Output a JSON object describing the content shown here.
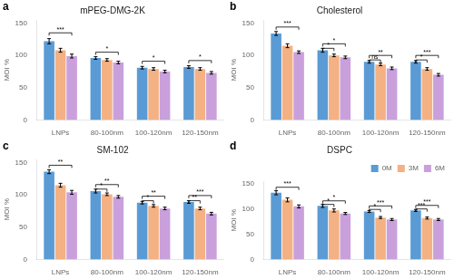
{
  "chart_data": [
    {
      "type": "bar",
      "panel_label": "a",
      "title": "mPEG-DMG-2K",
      "categories": [
        "LNPs",
        "80-100nm",
        "100-120nm",
        "120-150nm"
      ],
      "series": [
        {
          "name": "0M",
          "color": "#5B9BD5",
          "values": [
            122,
            96,
            81,
            82
          ],
          "errors": [
            4,
            2,
            2,
            2
          ]
        },
        {
          "name": "3M",
          "color": "#F4B183",
          "values": [
            108,
            93,
            79,
            79
          ],
          "errors": [
            3,
            2,
            2,
            2
          ]
        },
        {
          "name": "6M",
          "color": "#C9A0DC",
          "values": [
            99,
            89,
            75,
            73
          ],
          "errors": [
            3,
            2,
            2,
            2
          ]
        }
      ],
      "ylabel": "MOI %",
      "ylim": [
        0,
        155
      ],
      "yticks": [
        0,
        50,
        100,
        150
      ],
      "grid": false,
      "annotations": [
        {
          "text": "***",
          "y": 135,
          "from": {
            "category": "LNPs",
            "series": "0M"
          },
          "to": {
            "category": "LNPs",
            "series": "6M"
          }
        },
        {
          "text": "*",
          "y": 105,
          "from": {
            "category": "80-100nm",
            "series": "0M"
          },
          "to": {
            "category": "80-100nm",
            "series": "6M"
          }
        },
        {
          "text": "*",
          "y": 91,
          "from": {
            "category": "100-120nm",
            "series": "0M"
          },
          "to": {
            "category": "100-120nm",
            "series": "6M"
          }
        },
        {
          "text": "*",
          "y": 92,
          "from": {
            "category": "120-150nm",
            "series": "0M"
          },
          "to": {
            "category": "120-150nm",
            "series": "6M"
          }
        }
      ]
    },
    {
      "type": "bar",
      "panel_label": "b",
      "title": "Cholesterol",
      "categories": [
        "LNPs",
        "80-100nm",
        "100-120nm",
        "120-150nm"
      ],
      "series": [
        {
          "name": "0M",
          "color": "#5B9BD5",
          "values": [
            134,
            108,
            90,
            90
          ],
          "errors": [
            3,
            3,
            2,
            2
          ]
        },
        {
          "name": "3M",
          "color": "#F4B183",
          "values": [
            115,
            100,
            86,
            79
          ],
          "errors": [
            3,
            2,
            2,
            2
          ]
        },
        {
          "name": "6M",
          "color": "#C9A0DC",
          "values": [
            105,
            97,
            80,
            70
          ],
          "errors": [
            2,
            2,
            2,
            2
          ]
        }
      ],
      "ylabel": "MOI %",
      "ylim": [
        0,
        155
      ],
      "yticks": [
        0,
        50,
        100,
        150
      ],
      "grid": false,
      "annotations": [
        {
          "text": "***",
          "y": 144,
          "from": {
            "category": "LNPs",
            "series": "0M"
          },
          "to": {
            "category": "LNPs",
            "series": "6M"
          }
        },
        {
          "text": "*",
          "y": 118,
          "from": {
            "category": "80-100nm",
            "series": "0M"
          },
          "to": {
            "category": "80-100nm",
            "series": "6M"
          }
        },
        {
          "text": "**",
          "y": 100,
          "from": {
            "category": "100-120nm",
            "series": "0M"
          },
          "to": {
            "category": "100-120nm",
            "series": "6M"
          }
        },
        {
          "text": "***",
          "y": 100,
          "from": {
            "category": "120-150nm",
            "series": "0M"
          },
          "to": {
            "category": "120-150nm",
            "series": "6M"
          }
        },
        {
          "text": "*",
          "y": 111,
          "from": {
            "category": "80-100nm",
            "series": "0M"
          },
          "to": {
            "category": "80-100nm",
            "series": "3M"
          }
        },
        {
          "text": "ns",
          "y": 93,
          "from": {
            "category": "100-120nm",
            "series": "0M"
          },
          "to": {
            "category": "100-120nm",
            "series": "3M"
          }
        },
        {
          "text": "*",
          "y": 93,
          "from": {
            "category": "120-150nm",
            "series": "0M"
          },
          "to": {
            "category": "120-150nm",
            "series": "3M"
          }
        }
      ]
    },
    {
      "type": "bar",
      "panel_label": "c",
      "title": "SM-102",
      "categories": [
        "LNPs",
        "80-100nm",
        "100-120nm",
        "120-150nm"
      ],
      "series": [
        {
          "name": "0M",
          "color": "#5B9BD5",
          "values": [
            136,
            106,
            88,
            89
          ],
          "errors": [
            3,
            3,
            2,
            2
          ]
        },
        {
          "name": "3M",
          "color": "#F4B183",
          "values": [
            115,
            101,
            83,
            79
          ],
          "errors": [
            3,
            2,
            2,
            2
          ]
        },
        {
          "name": "6M",
          "color": "#C9A0DC",
          "values": [
            104,
            97,
            79,
            71
          ],
          "errors": [
            3,
            2,
            2,
            2
          ]
        }
      ],
      "ylabel": "MOI %",
      "ylim": [
        0,
        155
      ],
      "yticks": [
        0,
        50,
        100,
        150
      ],
      "grid": false,
      "annotations": [
        {
          "text": "**",
          "y": 146,
          "from": {
            "category": "LNPs",
            "series": "0M"
          },
          "to": {
            "category": "LNPs",
            "series": "6M"
          }
        },
        {
          "text": "**",
          "y": 116,
          "from": {
            "category": "80-100nm",
            "series": "0M"
          },
          "to": {
            "category": "80-100nm",
            "series": "6M"
          }
        },
        {
          "text": "**",
          "y": 98,
          "from": {
            "category": "100-120nm",
            "series": "0M"
          },
          "to": {
            "category": "100-120nm",
            "series": "6M"
          }
        },
        {
          "text": "***",
          "y": 99,
          "from": {
            "category": "120-150nm",
            "series": "0M"
          },
          "to": {
            "category": "120-150nm",
            "series": "6M"
          }
        },
        {
          "text": "*",
          "y": 109,
          "from": {
            "category": "80-100nm",
            "series": "0M"
          },
          "to": {
            "category": "80-100nm",
            "series": "3M"
          }
        },
        {
          "text": "*",
          "y": 91,
          "from": {
            "category": "100-120nm",
            "series": "0M"
          },
          "to": {
            "category": "100-120nm",
            "series": "3M"
          }
        },
        {
          "text": "**",
          "y": 91,
          "from": {
            "category": "120-150nm",
            "series": "0M"
          },
          "to": {
            "category": "120-150nm",
            "series": "3M"
          }
        }
      ]
    },
    {
      "type": "bar",
      "panel_label": "d",
      "title": "DSPC",
      "categories": [
        "LNPs",
        "80-100nm",
        "100-120nm",
        "120-150nm"
      ],
      "series": [
        {
          "name": "0M",
          "color": "#5B9BD5",
          "values": [
            132,
            106,
            95,
            97
          ],
          "errors": [
            4,
            3,
            2,
            2
          ]
        },
        {
          "name": "3M",
          "color": "#F4B183",
          "values": [
            118,
            97,
            83,
            82
          ],
          "errors": [
            4,
            3,
            2,
            2
          ]
        },
        {
          "name": "6M",
          "color": "#C9A0DC",
          "values": [
            105,
            91,
            79,
            79
          ],
          "errors": [
            3,
            2,
            2,
            2
          ]
        }
      ],
      "ylabel": "MOI %",
      "ylim": [
        0,
        155
      ],
      "yticks": [
        0,
        50,
        100,
        150
      ],
      "grid": false,
      "legend": "upper right",
      "annotations": [
        {
          "text": "***",
          "y": 143,
          "from": {
            "category": "LNPs",
            "series": "0M"
          },
          "to": {
            "category": "LNPs",
            "series": "6M"
          }
        },
        {
          "text": "*",
          "y": 116,
          "from": {
            "category": "80-100nm",
            "series": "0M"
          },
          "to": {
            "category": "80-100nm",
            "series": "6M"
          }
        },
        {
          "text": "***",
          "y": 106,
          "from": {
            "category": "100-120nm",
            "series": "0M"
          },
          "to": {
            "category": "100-120nm",
            "series": "6M"
          }
        },
        {
          "text": "***",
          "y": 107,
          "from": {
            "category": "120-150nm",
            "series": "0M"
          },
          "to": {
            "category": "120-150nm",
            "series": "6M"
          }
        },
        {
          "text": "*",
          "y": 109,
          "from": {
            "category": "80-100nm",
            "series": "0M"
          },
          "to": {
            "category": "80-100nm",
            "series": "3M"
          }
        },
        {
          "text": "*",
          "y": 99,
          "from": {
            "category": "100-120nm",
            "series": "0M"
          },
          "to": {
            "category": "100-120nm",
            "series": "3M"
          }
        },
        {
          "text": "***",
          "y": 100,
          "from": {
            "category": "120-150nm",
            "series": "0M"
          },
          "to": {
            "category": "120-150nm",
            "series": "3M"
          }
        }
      ]
    }
  ]
}
